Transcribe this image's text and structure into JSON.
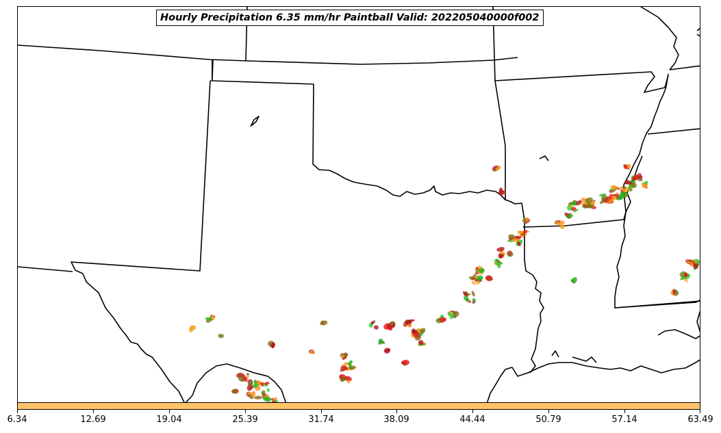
{
  "title": "Hourly Precipitation 6.35 mm/hr Paintball Valid: 202205040000f002",
  "colorbar": {
    "color": "#ffc36a",
    "ticks": [
      "6.34",
      "12.69",
      "19.04",
      "25.39",
      "31.74",
      "38.09",
      "44.44",
      "50.79",
      "57.14",
      "63.49"
    ]
  },
  "member_colors": [
    "#e8141c",
    "#b5121b",
    "#f5a623",
    "#ff8c1a",
    "#1fb31f",
    "#2ecc2e",
    "#8b6914",
    "#7a7a1a",
    "#c0392b"
  ],
  "boundary_color": "#000000"
}
